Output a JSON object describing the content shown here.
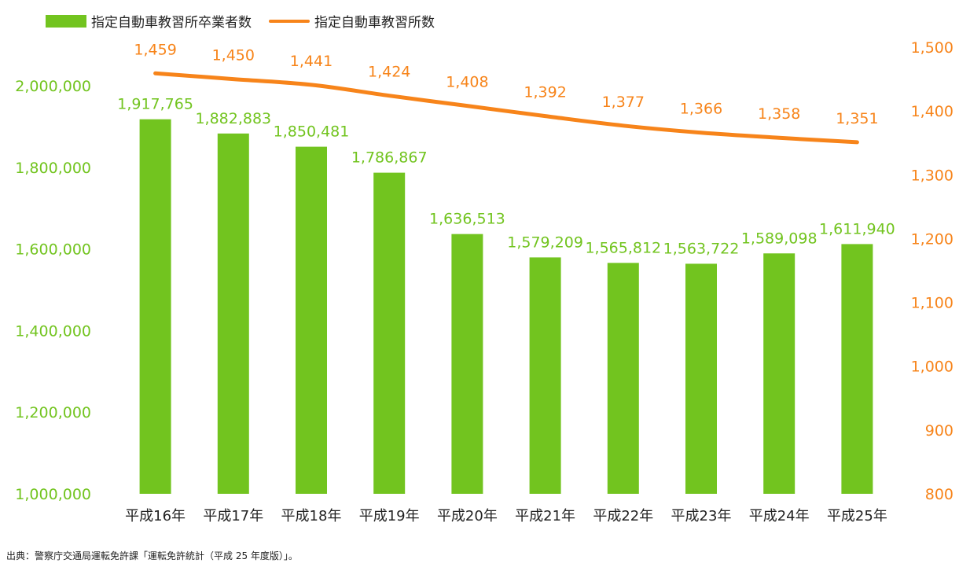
{
  "legend": {
    "bar_label": "指定自動車教習所卒業者数",
    "line_label": "指定自動車教習所数"
  },
  "source": "出典：警察庁交通局運転免許課「運転免許統計（平成 25 年度版）」。",
  "colors": {
    "bar": "#72c41f",
    "line": "#f7841a",
    "left_axis": "#72c41f",
    "right_axis": "#f7841a",
    "category_text": "#222222"
  },
  "chart_data": {
    "type": "bar+line",
    "categories": [
      "平成16年",
      "平成17年",
      "平成18年",
      "平成19年",
      "平成20年",
      "平成21年",
      "平成22年",
      "平成23年",
      "平成24年",
      "平成25年"
    ],
    "series": [
      {
        "name": "指定自動車教習所卒業者数",
        "type": "bar",
        "axis": "left",
        "values": [
          1917765,
          1882883,
          1850481,
          1786867,
          1636513,
          1579209,
          1565812,
          1563722,
          1589098,
          1611940
        ],
        "labels": [
          "1,917,765",
          "1,882,883",
          "1,850,481",
          "1,786,867",
          "1,636,513",
          "1,579,209",
          "1,565,812",
          "1,563,722",
          "1,589,098",
          "1,611,940"
        ]
      },
      {
        "name": "指定自動車教習所数",
        "type": "line",
        "axis": "right",
        "values": [
          1459,
          1450,
          1441,
          1424,
          1408,
          1392,
          1377,
          1366,
          1358,
          1351
        ],
        "labels": [
          "1,459",
          "1,450",
          "1,441",
          "1,424",
          "1,408",
          "1,392",
          "1,377",
          "1,366",
          "1,358",
          "1,351"
        ]
      }
    ],
    "left_axis": {
      "ylim": [
        1000000,
        2100000
      ],
      "ticks": [
        1000000,
        1200000,
        1400000,
        1600000,
        1800000,
        2000000
      ],
      "tick_labels": [
        "1,000,000",
        "1,200,000",
        "1,400,000",
        "1,600,000",
        "1,800,000",
        "2,000,000"
      ]
    },
    "right_axis": {
      "ylim": [
        800,
        1500
      ],
      "ticks": [
        800,
        900,
        1000,
        1100,
        1200,
        1300,
        1400,
        1500
      ],
      "tick_labels": [
        "800",
        "900",
        "1,000",
        "1,100",
        "1,200",
        "1,300",
        "1,400",
        "1,500"
      ]
    },
    "grid": false,
    "legend_position": "top-left"
  }
}
